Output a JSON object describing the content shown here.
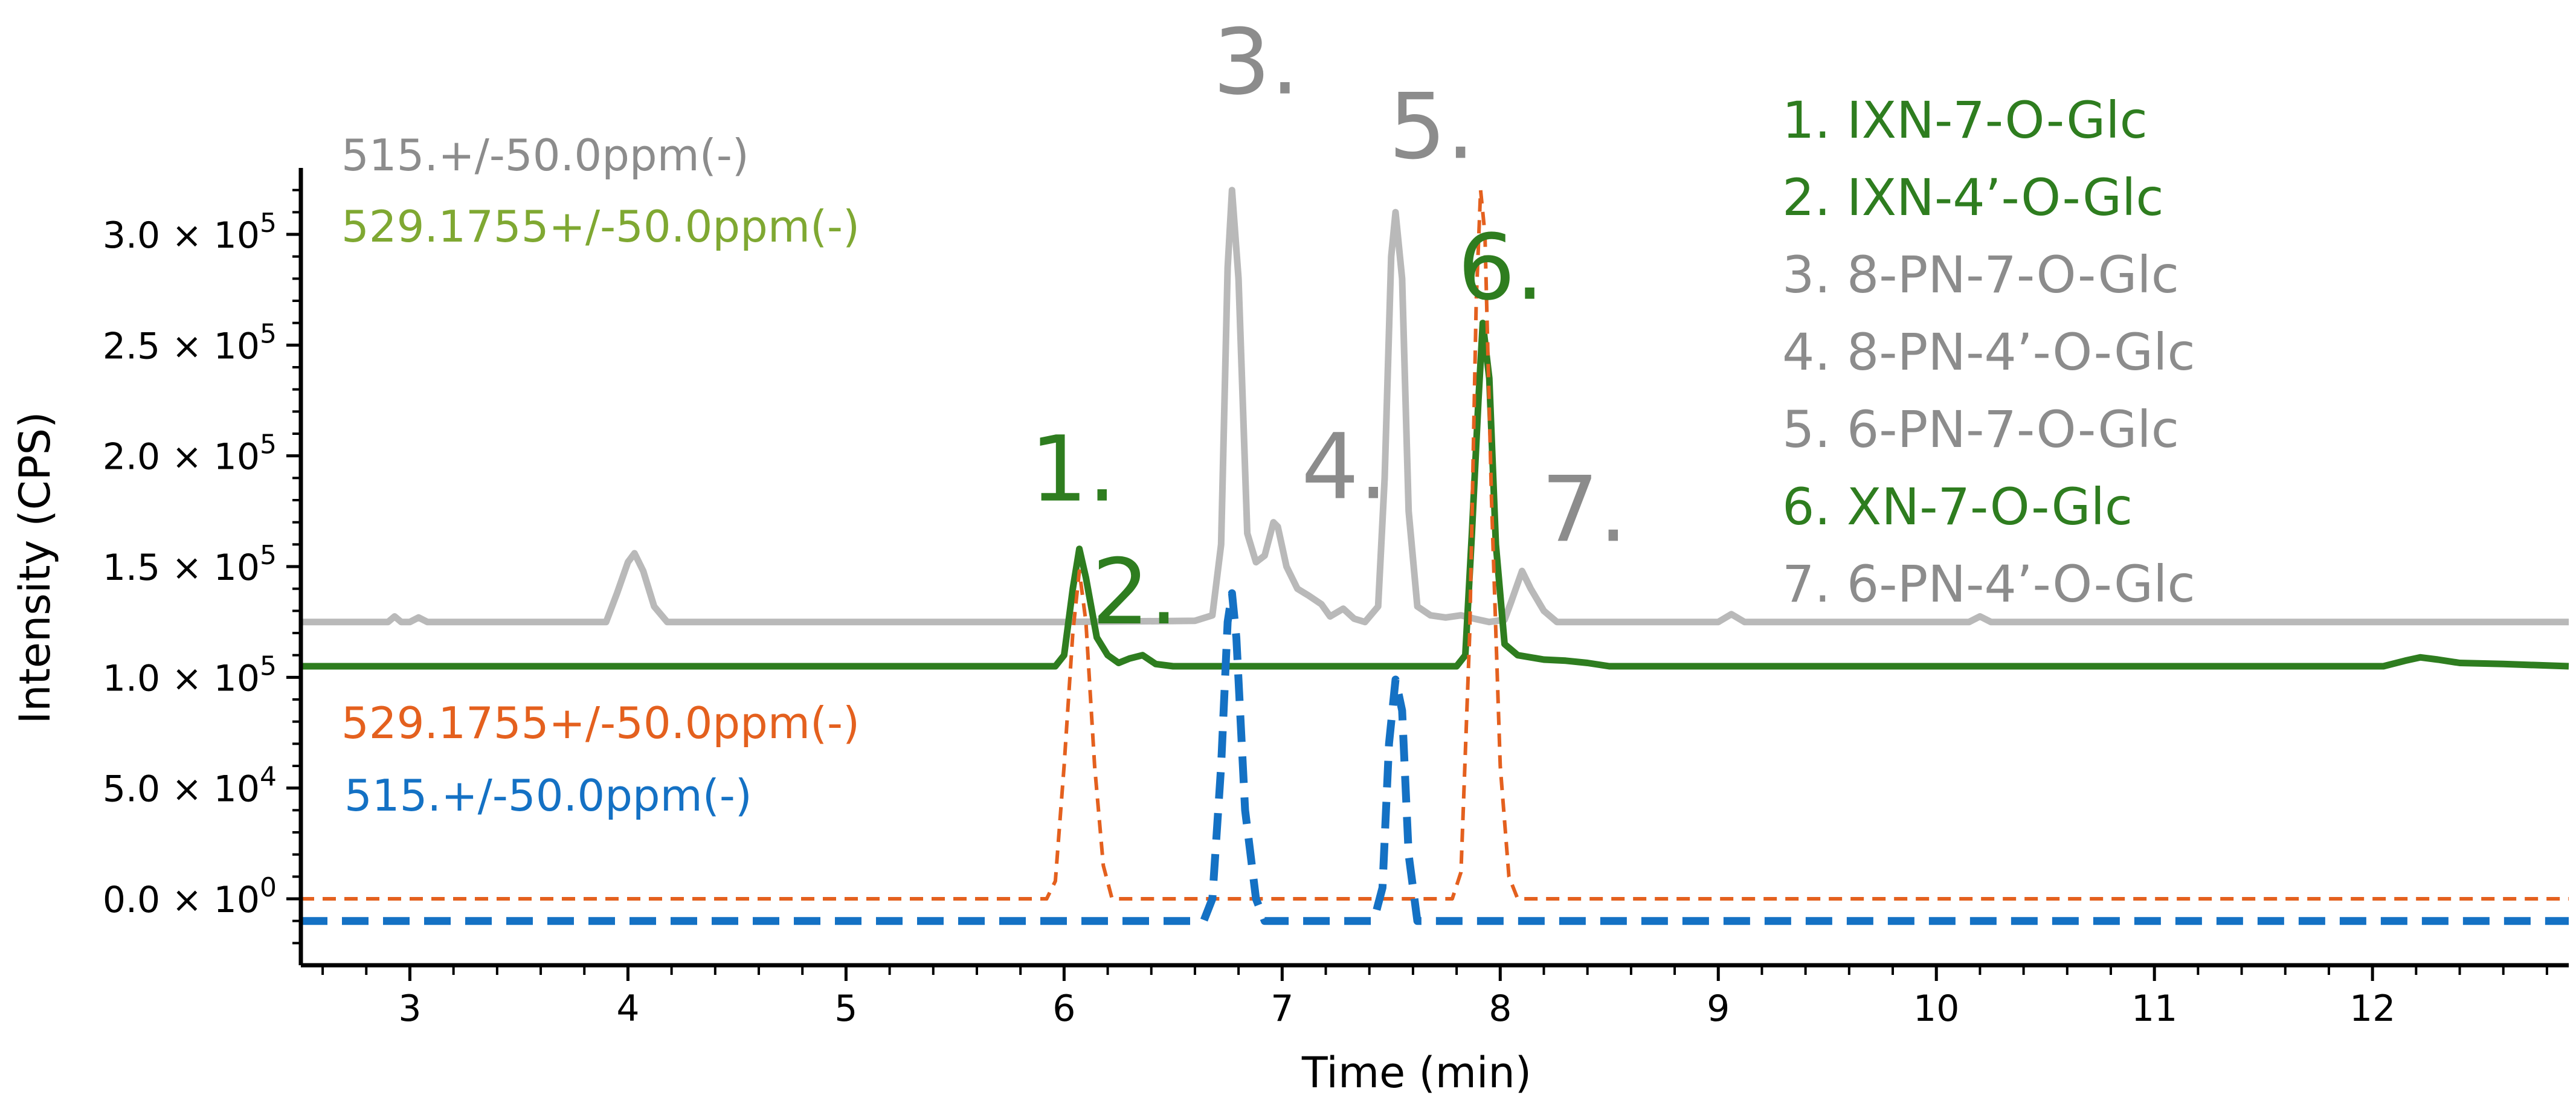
{
  "chart_data": {
    "type": "line",
    "title": "",
    "xlabel": "Time (min)",
    "ylabel": "Intensity (CPS)",
    "xlim": [
      2.5,
      12.9
    ],
    "ylim": [
      -30000,
      330000
    ],
    "x_ticks": [
      3,
      4,
      5,
      6,
      7,
      8,
      9,
      10,
      11,
      12
    ],
    "x_tick_labels": [
      "3",
      "4",
      "5",
      "6",
      "7",
      "8",
      "9",
      "10",
      "11",
      "12"
    ],
    "y_ticks": [
      0,
      50000,
      100000,
      150000,
      200000,
      250000,
      300000
    ],
    "y_tick_labels": [
      {
        "mantissa": "0.0",
        "exp": "0"
      },
      {
        "mantissa": "5.0",
        "exp": "4"
      },
      {
        "mantissa": "1.0",
        "exp": "5"
      },
      {
        "mantissa": "1.5",
        "exp": "5"
      },
      {
        "mantissa": "2.0",
        "exp": "5"
      },
      {
        "mantissa": "2.5",
        "exp": "5"
      },
      {
        "mantissa": "3.0",
        "exp": "5"
      }
    ],
    "series": [
      {
        "name": "515.+/-50.0ppm(-)",
        "color": "#b9b9b9",
        "style": "solid",
        "label_color": "#8c8c8c",
        "points": [
          [
            2.5,
            125000
          ],
          [
            2.9,
            125000
          ],
          [
            2.93,
            127500
          ],
          [
            2.96,
            125000
          ],
          [
            3.0,
            125000
          ],
          [
            3.04,
            127000
          ],
          [
            3.08,
            125000
          ],
          [
            3.9,
            125000
          ],
          [
            3.95,
            138000
          ],
          [
            4.0,
            152000
          ],
          [
            4.03,
            156000
          ],
          [
            4.07,
            148000
          ],
          [
            4.12,
            132000
          ],
          [
            4.18,
            125000
          ],
          [
            5.6,
            125000
          ],
          [
            6.0,
            125000
          ],
          [
            6.6,
            125500
          ],
          [
            6.68,
            128000
          ],
          [
            6.72,
            160000
          ],
          [
            6.75,
            285000
          ],
          [
            6.77,
            320000
          ],
          [
            6.8,
            280000
          ],
          [
            6.84,
            165000
          ],
          [
            6.88,
            152000
          ],
          [
            6.92,
            155000
          ],
          [
            6.96,
            170000
          ],
          [
            6.98,
            168000
          ],
          [
            7.02,
            150000
          ],
          [
            7.07,
            140000
          ],
          [
            7.12,
            137000
          ],
          [
            7.18,
            133000
          ],
          [
            7.22,
            127500
          ],
          [
            7.28,
            131000
          ],
          [
            7.33,
            126500
          ],
          [
            7.38,
            125000
          ],
          [
            7.44,
            132000
          ],
          [
            7.47,
            190000
          ],
          [
            7.5,
            290000
          ],
          [
            7.52,
            310000
          ],
          [
            7.55,
            280000
          ],
          [
            7.58,
            175000
          ],
          [
            7.62,
            132000
          ],
          [
            7.68,
            128000
          ],
          [
            7.75,
            127000
          ],
          [
            7.82,
            128000
          ],
          [
            7.88,
            126500
          ],
          [
            7.95,
            125000
          ],
          [
            8.02,
            126000
          ],
          [
            8.05,
            134000
          ],
          [
            8.1,
            148000
          ],
          [
            8.14,
            140000
          ],
          [
            8.2,
            130000
          ],
          [
            8.26,
            125000
          ],
          [
            9.0,
            125000
          ],
          [
            9.06,
            128500
          ],
          [
            9.12,
            125000
          ],
          [
            10.15,
            125000
          ],
          [
            10.2,
            127500
          ],
          [
            10.25,
            125000
          ],
          [
            12.9,
            125000
          ]
        ]
      },
      {
        "name": "529.1755+/-50.0ppm(-)",
        "color": "#2e7d1f",
        "style": "solid",
        "label_color": "#7fa832",
        "points": [
          [
            2.5,
            105000
          ],
          [
            5.96,
            105000
          ],
          [
            6.0,
            110000
          ],
          [
            6.04,
            140000
          ],
          [
            6.07,
            158000
          ],
          [
            6.1,
            145000
          ],
          [
            6.15,
            118000
          ],
          [
            6.2,
            110000
          ],
          [
            6.25,
            106500
          ],
          [
            6.3,
            108500
          ],
          [
            6.36,
            110000
          ],
          [
            6.42,
            106000
          ],
          [
            6.5,
            105000
          ],
          [
            7.8,
            105000
          ],
          [
            7.84,
            110000
          ],
          [
            7.87,
            165000
          ],
          [
            7.9,
            225000
          ],
          [
            7.92,
            260000
          ],
          [
            7.95,
            235000
          ],
          [
            7.98,
            160000
          ],
          [
            8.02,
            115000
          ],
          [
            8.08,
            110000
          ],
          [
            8.2,
            108000
          ],
          [
            8.3,
            107500
          ],
          [
            8.4,
            106500
          ],
          [
            8.5,
            105000
          ],
          [
            12.05,
            105000
          ],
          [
            12.15,
            107500
          ],
          [
            12.22,
            109000
          ],
          [
            12.3,
            108000
          ],
          [
            12.4,
            106500
          ],
          [
            12.6,
            106000
          ],
          [
            12.9,
            105000
          ]
        ]
      },
      {
        "name": "529.1755+/-50.0ppm(-)",
        "color": "#e4601e",
        "style": "dash-fine",
        "label_color": "#e4601e",
        "points": [
          [
            2.5,
            0
          ],
          [
            5.92,
            0
          ],
          [
            5.96,
            8000
          ],
          [
            6.0,
            60000
          ],
          [
            6.04,
            120000
          ],
          [
            6.07,
            148000
          ],
          [
            6.1,
            125000
          ],
          [
            6.14,
            60000
          ],
          [
            6.18,
            15000
          ],
          [
            6.22,
            0
          ],
          [
            7.78,
            0
          ],
          [
            7.82,
            12000
          ],
          [
            7.86,
            120000
          ],
          [
            7.89,
            270000
          ],
          [
            7.91,
            320000
          ],
          [
            7.93,
            300000
          ],
          [
            7.96,
            180000
          ],
          [
            8.0,
            60000
          ],
          [
            8.04,
            10000
          ],
          [
            8.08,
            0
          ],
          [
            12.9,
            0
          ]
        ]
      },
      {
        "name": "515.+/-50.0ppm(-)",
        "color": "#1471c4",
        "style": "dash-bold",
        "label_color": "#1471c4",
        "points": [
          [
            2.5,
            -10000
          ],
          [
            6.64,
            -10000
          ],
          [
            6.68,
            0
          ],
          [
            6.72,
            60000
          ],
          [
            6.75,
            125000
          ],
          [
            6.77,
            138000
          ],
          [
            6.79,
            118000
          ],
          [
            6.83,
            40000
          ],
          [
            6.88,
            0
          ],
          [
            6.92,
            -10000
          ],
          [
            7.42,
            -10000
          ],
          [
            7.46,
            5000
          ],
          [
            7.49,
            70000
          ],
          [
            7.52,
            99000
          ],
          [
            7.55,
            85000
          ],
          [
            7.58,
            20000
          ],
          [
            7.62,
            -10000
          ],
          [
            12.9,
            -10000
          ]
        ]
      }
    ],
    "series_labels": [
      {
        "text": "515.+/-50.0ppm(-)",
        "color": "#8c8c8c"
      },
      {
        "text": "529.1755+/-50.0ppm(-)",
        "color": "#7fa832"
      },
      {
        "text": "529.1755+/-50.0ppm(-)",
        "color": "#e4601e"
      },
      {
        "text": "515.+/-50.0ppm(-)",
        "color": "#1471c4"
      }
    ],
    "peak_labels": [
      {
        "text": "1.",
        "x": 6.07,
        "y": 158000,
        "color": "#2e7d1f"
      },
      {
        "text": "2.",
        "x": 6.45,
        "y": 138000,
        "color": "#2e7d1f"
      },
      {
        "text": "3.",
        "x": 6.77,
        "y": 320000,
        "color": "#8c8c8c"
      },
      {
        "text": "4.",
        "x": 7.12,
        "y": 170000,
        "color": "#8c8c8c"
      },
      {
        "text": "5.",
        "x": 7.52,
        "y": 310000,
        "color": "#8c8c8c"
      },
      {
        "text": "6.",
        "x": 7.92,
        "y": 260000,
        "color": "#2e7d1f"
      },
      {
        "text": "7.",
        "x": 8.22,
        "y": 148000,
        "color": "#8c8c8c"
      }
    ],
    "legend": {
      "position": "top-right",
      "items": [
        {
          "text": "1. IXN-7-O-Glc",
          "color": "#2e7d1f"
        },
        {
          "text": "2. IXN-4’-O-Glc",
          "color": "#2e7d1f"
        },
        {
          "text": "3. 8-PN-7-O-Glc",
          "color": "#8c8c8c"
        },
        {
          "text": "4. 8-PN-4’-O-Glc",
          "color": "#8c8c8c"
        },
        {
          "text": "5. 6-PN-7-O-Glc",
          "color": "#8c8c8c"
        },
        {
          "text": "6. XN-7-O-Glc",
          "color": "#2e7d1f"
        },
        {
          "text": "7. 6-PN-4’-O-Glc",
          "color": "#8c8c8c"
        }
      ]
    },
    "grid": false
  }
}
